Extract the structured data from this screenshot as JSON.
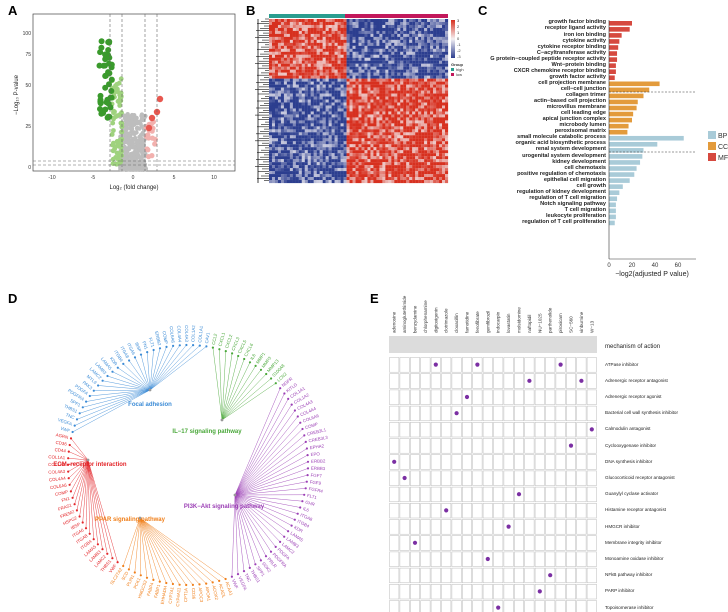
{
  "panels": {
    "a": "A",
    "b": "B",
    "c": "C",
    "d": "D",
    "e": "E"
  },
  "volcano": {
    "ylabel": "−Log₁₀ P-value",
    "xlabel": "Log₂ (fold change)",
    "xticks": [
      "-10",
      "-5",
      "0",
      "5",
      "10"
    ],
    "yticks": [
      "0",
      "25",
      "50",
      "75",
      "100"
    ],
    "colors": {
      "down": "#3a9a2c",
      "down_light": "#9fd27e",
      "none": "#bdbdbd",
      "up_light": "#f2b1ae",
      "up": "#e8574f"
    }
  },
  "heatmap": {
    "scale_ticks": [
      "3",
      "2",
      "1",
      "0",
      "-1",
      "-2",
      "-3"
    ],
    "legend_title": "Group",
    "legend_items": [
      "high",
      "low"
    ],
    "colors": {
      "high_group": "#2a9d8f",
      "low_group": "#c2185b",
      "hot": "#d7301f",
      "cold": "#2c3e8f",
      "mid": "#f4f1f4"
    }
  },
  "go_chart": {
    "xlabel": "−log2(adjusted P value)",
    "xticks": [
      "0",
      "20",
      "40",
      "60"
    ],
    "legend": [
      {
        "name": "BP",
        "color": "#a9cbd8"
      },
      {
        "name": "CC",
        "color": "#e39b3c"
      },
      {
        "name": "MF",
        "color": "#d6493f"
      }
    ]
  },
  "chart_data": {
    "type": "bar",
    "title": "",
    "xlabel": "−log2(adjusted P value)",
    "ylabel": "",
    "xlim": [
      0,
      70
    ],
    "series": [
      {
        "name": "MF",
        "categories": [
          "growth factor binding",
          "receptor ligand activity",
          "iron ion binding",
          "cytokine activity",
          "cytokine receptor binding",
          "C−acyltransferase activity",
          "G protein−coupled peptide receptor activity",
          "Wnt−protein binding",
          "CXCR chemokine receptor binding",
          "growth factor activity"
        ],
        "values": [
          20,
          18,
          11,
          9,
          8,
          7,
          7,
          6,
          6,
          5
        ]
      },
      {
        "name": "CC",
        "categories": [
          "cell projection membrane",
          "cell−cell junction",
          "collagen trimer",
          "actin−based cell projection",
          "microvillus membrane",
          "cell leading edge",
          "apical junction complex",
          "microbody lumen",
          "peroxisomal matrix"
        ],
        "values": [
          44,
          35,
          30,
          25,
          24,
          21,
          20,
          17,
          16
        ]
      },
      {
        "name": "BP",
        "categories": [
          "small molecule catabolic process",
          "organic acid biosynthetic process",
          "renal system development",
          "urogenital system development",
          "kidney development",
          "cell chemotaxis",
          "positive regulation of chemotaxis",
          "epithelial cell migration",
          "cell growth",
          "regulation of kidney development",
          "regulation of T cell migration",
          "Notch signaling pathway",
          "T cell migration",
          "leukocyte proliferation",
          "regulation of T cell proliferation"
        ],
        "values": [
          65,
          42,
          30,
          29,
          27,
          24,
          22,
          18,
          12,
          9,
          7,
          6,
          6,
          6,
          5
        ]
      }
    ]
  },
  "network": {
    "pathways": [
      {
        "name": "Focal adhesion",
        "color": "#3b8bd6"
      },
      {
        "name": "IL−17 signaling pathway",
        "color": "#4aa83a"
      },
      {
        "name": "ECM−receptor interaction",
        "color": "#e3262a"
      },
      {
        "name": "PI3K−Akt signaling pathway",
        "color": "#9b3fb5"
      },
      {
        "name": "PPAR signaling pathway",
        "color": "#f07f1a"
      }
    ],
    "gene_labels": [
      {
        "text": "CCL2",
        "color": "#4aa83a"
      },
      {
        "text": "CXCL1",
        "color": "#4aa83a"
      },
      {
        "text": "CXCL2",
        "color": "#4aa83a"
      },
      {
        "text": "CXCL3",
        "color": "#4aa83a"
      },
      {
        "text": "CXCL5",
        "color": "#4aa83a"
      },
      {
        "text": "CXCL6",
        "color": "#4aa83a"
      },
      {
        "text": "IL6",
        "color": "#4aa83a"
      },
      {
        "text": "MMP1",
        "color": "#4aa83a"
      },
      {
        "text": "MMP3",
        "color": "#4aa83a"
      },
      {
        "text": "MMP13",
        "color": "#4aa83a"
      },
      {
        "text": "S100A8",
        "color": "#4aa83a"
      },
      {
        "text": "LCN2",
        "color": "#4aa83a"
      },
      {
        "text": "NGFR",
        "color": "#9b3fb5"
      },
      {
        "text": "KITLG",
        "color": "#9b3fb5"
      },
      {
        "text": "COL1A1",
        "color": "#9b3fb5"
      },
      {
        "text": "COL1A2",
        "color": "#9b3fb5"
      },
      {
        "text": "COL4A3",
        "color": "#9b3fb5"
      },
      {
        "text": "COL4A4",
        "color": "#9b3fb5"
      },
      {
        "text": "COL6A6",
        "color": "#9b3fb5"
      },
      {
        "text": "COMP",
        "color": "#9b3fb5"
      },
      {
        "text": "CREB3L1",
        "color": "#9b3fb5"
      },
      {
        "text": "CREB3L3",
        "color": "#9b3fb5"
      },
      {
        "text": "EPHA2",
        "color": "#9b3fb5"
      },
      {
        "text": "EPO",
        "color": "#9b3fb5"
      },
      {
        "text": "ERBB2",
        "color": "#9b3fb5"
      },
      {
        "text": "ERBB3",
        "color": "#9b3fb5"
      },
      {
        "text": "FGF7",
        "color": "#9b3fb5"
      },
      {
        "text": "FGF9",
        "color": "#9b3fb5"
      },
      {
        "text": "FGFR4",
        "color": "#9b3fb5"
      },
      {
        "text": "FLT1",
        "color": "#9b3fb5"
      },
      {
        "text": "GHR",
        "color": "#9b3fb5"
      },
      {
        "text": "IL6",
        "color": "#9b3fb5"
      },
      {
        "text": "ITGA8",
        "color": "#9b3fb5"
      },
      {
        "text": "ITGB4",
        "color": "#9b3fb5"
      },
      {
        "text": "KDR",
        "color": "#9b3fb5"
      },
      {
        "text": "LAMA5",
        "color": "#9b3fb5"
      },
      {
        "text": "LAMB3",
        "color": "#9b3fb5"
      },
      {
        "text": "LAMC2",
        "color": "#9b3fb5"
      },
      {
        "text": "PDGFA",
        "color": "#9b3fb5"
      },
      {
        "text": "PDGFRA",
        "color": "#9b3fb5"
      },
      {
        "text": "PRLR",
        "color": "#9b3fb5"
      },
      {
        "text": "SGK2",
        "color": "#9b3fb5"
      },
      {
        "text": "SPP1",
        "color": "#9b3fb5"
      },
      {
        "text": "THBS1",
        "color": "#9b3fb5"
      },
      {
        "text": "TNC",
        "color": "#9b3fb5"
      },
      {
        "text": "VEGFA",
        "color": "#9b3fb5"
      },
      {
        "text": "VWF",
        "color": "#9b3fb5"
      },
      {
        "text": "ACAA1",
        "color": "#f07f1a"
      },
      {
        "text": "ACADL",
        "color": "#f07f1a"
      },
      {
        "text": "ACOX2",
        "color": "#f07f1a"
      },
      {
        "text": "APOA1",
        "color": "#f07f1a"
      },
      {
        "text": "APOC3",
        "color": "#f07f1a"
      },
      {
        "text": "CD36",
        "color": "#f07f1a"
      },
      {
        "text": "CPT1A",
        "color": "#f07f1a"
      },
      {
        "text": "CYP4A11",
        "color": "#f07f1a"
      },
      {
        "text": "CYP7A1",
        "color": "#f07f1a"
      },
      {
        "text": "EHHADH",
        "color": "#f07f1a"
      },
      {
        "text": "FABP1",
        "color": "#f07f1a"
      },
      {
        "text": "FABP4",
        "color": "#f07f1a"
      },
      {
        "text": "HMGCS2",
        "color": "#f07f1a"
      },
      {
        "text": "PCK1",
        "color": "#f07f1a"
      },
      {
        "text": "PLIN1",
        "color": "#f07f1a"
      },
      {
        "text": "SCD",
        "color": "#f07f1a"
      },
      {
        "text": "SLC27A2",
        "color": "#f07f1a"
      },
      {
        "text": "VWF",
        "color": "#e3262a"
      },
      {
        "text": "THBS1",
        "color": "#e3262a"
      },
      {
        "text": "LAMC2",
        "color": "#e3262a"
      },
      {
        "text": "LAMB3",
        "color": "#e3262a"
      },
      {
        "text": "LAMA5",
        "color": "#e3262a"
      },
      {
        "text": "ITGB4",
        "color": "#e3262a"
      },
      {
        "text": "ITGA8",
        "color": "#e3262a"
      },
      {
        "text": "ITGA6",
        "color": "#e3262a"
      },
      {
        "text": "IBSP",
        "color": "#e3262a"
      },
      {
        "text": "HSPG2",
        "color": "#e3262a"
      },
      {
        "text": "FREM2",
        "color": "#e3262a"
      },
      {
        "text": "FRAS1",
        "color": "#e3262a"
      },
      {
        "text": "FN1",
        "color": "#e3262a"
      },
      {
        "text": "COMP",
        "color": "#e3262a"
      },
      {
        "text": "COL6A6",
        "color": "#e3262a"
      },
      {
        "text": "COL4A4",
        "color": "#e3262a"
      },
      {
        "text": "COL4A3",
        "color": "#e3262a"
      },
      {
        "text": "COL1A2",
        "color": "#e3262a"
      },
      {
        "text": "COL1A1",
        "color": "#e3262a"
      },
      {
        "text": "CD44",
        "color": "#e3262a"
      },
      {
        "text": "CD36",
        "color": "#e3262a"
      },
      {
        "text": "AGRN",
        "color": "#e3262a"
      },
      {
        "text": "VWF",
        "color": "#3b8bd6"
      },
      {
        "text": "VEGFA",
        "color": "#3b8bd6"
      },
      {
        "text": "TNC",
        "color": "#3b8bd6"
      },
      {
        "text": "THBS1",
        "color": "#3b8bd6"
      },
      {
        "text": "SPP1",
        "color": "#3b8bd6"
      },
      {
        "text": "PDGFRA",
        "color": "#3b8bd6"
      },
      {
        "text": "PDGFA",
        "color": "#3b8bd6"
      },
      {
        "text": "PAK3",
        "color": "#3b8bd6"
      },
      {
        "text": "MYL9",
        "color": "#3b8bd6"
      },
      {
        "text": "LAMC2",
        "color": "#3b8bd6"
      },
      {
        "text": "LAMB3",
        "color": "#3b8bd6"
      },
      {
        "text": "LAMA5",
        "color": "#3b8bd6"
      },
      {
        "text": "KDR",
        "color": "#3b8bd6"
      },
      {
        "text": "ITGB4",
        "color": "#3b8bd6"
      },
      {
        "text": "ITGA8",
        "color": "#3b8bd6"
      },
      {
        "text": "ITGA6",
        "color": "#3b8bd6"
      },
      {
        "text": "IBSP",
        "color": "#3b8bd6"
      },
      {
        "text": "FN1",
        "color": "#3b8bd6"
      },
      {
        "text": "FLT1",
        "color": "#3b8bd6"
      },
      {
        "text": "ERBB2",
        "color": "#3b8bd6"
      },
      {
        "text": "COMP",
        "color": "#3b8bd6"
      },
      {
        "text": "COL6A6",
        "color": "#3b8bd6"
      },
      {
        "text": "COL4A4",
        "color": "#3b8bd6"
      },
      {
        "text": "COL4A3",
        "color": "#3b8bd6"
      },
      {
        "text": "COL1A2",
        "color": "#3b8bd6"
      },
      {
        "text": "COL1A1",
        "color": "#3b8bd6"
      },
      {
        "text": "CAV1",
        "color": "#3b8bd6"
      }
    ]
  },
  "cmap": {
    "drugs": [
      "adenosine",
      "aminoglutethimide",
      "benzydamine",
      "chlorphenamine",
      "digitoxigenin",
      "clotrimazole",
      "cloxacillin",
      "famotidine",
      "fenofibrate",
      "gemfibrozil",
      "indocarpin",
      "lovastatin",
      "molsidomine",
      "naftopidil",
      "NU−1025",
      "parthenolide",
      "piroxicam",
      "SC−560",
      "vinburnine",
      "W−13"
    ],
    "mechanism_header": "mechanism of action",
    "moas": [
      "ATPase inhibitor",
      "Adrenergic receptor antagonist",
      "Adrenergic receptor agonist",
      "Bacterial cell wall synthesis inhibitor",
      "Calmodulin antagonist",
      "Cyclooxygenase inhibitor",
      "DNA synthesis inhibitor",
      "Glucocorticoid receptor antagonist",
      "Guanylyl cyclase activator",
      "Histamine receptor antagonist",
      "HMGCR inhibitor",
      "Membrane integrity inhibitor",
      "Monoamine oxidase inhibitor",
      "NFkB pathway inhibitor",
      "PARP inhibitor",
      "Topoisomerase inhibitor"
    ],
    "dot_color": "#7b2fa3",
    "links": [
      [
        0,
        4
      ],
      [
        0,
        8
      ],
      [
        0,
        16
      ],
      [
        1,
        13
      ],
      [
        1,
        18
      ],
      [
        2,
        7
      ],
      [
        3,
        6
      ],
      [
        4,
        19
      ],
      [
        5,
        17
      ],
      [
        6,
        0
      ],
      [
        7,
        1
      ],
      [
        8,
        12
      ],
      [
        9,
        5
      ],
      [
        10,
        11
      ],
      [
        11,
        2
      ],
      [
        12,
        9
      ],
      [
        13,
        15
      ],
      [
        14,
        14
      ],
      [
        15,
        10
      ]
    ]
  }
}
